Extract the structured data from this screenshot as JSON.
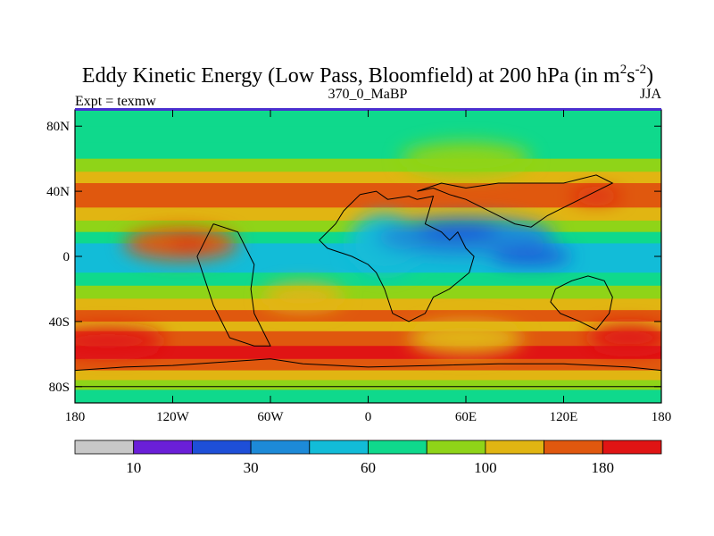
{
  "chart_data": {
    "type": "heatmap",
    "title": "Eddy Kinetic Energy (Low Pass, Bloomfield) at 200 hPa (in m",
    "title_unit_sup1": "2",
    "title_unit_s": "s",
    "title_unit_sup2": "-2",
    "title_close": ")",
    "left_label": "Expt = texmw",
    "center_label": "370_0_MaBP",
    "right_label": "JJA",
    "x_ticks": [
      "180",
      "120W",
      "60W",
      "0",
      "60E",
      "120E",
      "180"
    ],
    "y_ticks": [
      "80N",
      "40N",
      "0",
      "40S",
      "80S"
    ],
    "x_range": [
      -180,
      180
    ],
    "y_range": [
      -90,
      90
    ],
    "colorbar": {
      "colors": [
        "#c8c8c8",
        "#6a1fd8",
        "#1e4fd8",
        "#1d8ad8",
        "#12bcd8",
        "#0fd98c",
        "#8fd418",
        "#e1b512",
        "#e0580e",
        "#e01414"
      ],
      "labels": [
        {
          "boundary": 1,
          "text": "10"
        },
        {
          "boundary": 3,
          "text": "30"
        },
        {
          "boundary": 5,
          "text": "60"
        },
        {
          "boundary": 7,
          "text": "100"
        },
        {
          "boundary": 9,
          "text": "180"
        }
      ]
    },
    "field_bands": [
      {
        "lat": 90,
        "level": 5
      },
      {
        "lat": 80,
        "level": 5
      },
      {
        "lat": 70,
        "level": 5
      },
      {
        "lat": 60,
        "level": 6
      },
      {
        "lat": 52,
        "level": 7
      },
      {
        "lat": 45,
        "level": 8
      },
      {
        "lat": 38,
        "level": 8
      },
      {
        "lat": 30,
        "level": 7
      },
      {
        "lat": 22,
        "level": 6
      },
      {
        "lat": 15,
        "level": 5
      },
      {
        "lat": 8,
        "level": 4
      },
      {
        "lat": 0,
        "level": 4
      },
      {
        "lat": -10,
        "level": 5
      },
      {
        "lat": -18,
        "level": 6
      },
      {
        "lat": -26,
        "level": 7
      },
      {
        "lat": -33,
        "level": 8
      },
      {
        "lat": -40,
        "level": 7
      },
      {
        "lat": -46,
        "level": 8
      },
      {
        "lat": -55,
        "level": 9
      },
      {
        "lat": -63,
        "level": 8
      },
      {
        "lat": -70,
        "level": 7
      },
      {
        "lat": -76,
        "level": 6
      },
      {
        "lat": -82,
        "level": 5
      },
      {
        "lat": -90,
        "level": 5
      }
    ],
    "field_blobs": [
      {
        "name": "atlantic-min",
        "lon": 10,
        "lat": 8,
        "rlon": 22,
        "rlat": 18,
        "level": 4
      },
      {
        "name": "africa-asia-low",
        "lon": 60,
        "lat": 12,
        "rlon": 55,
        "rlat": 12,
        "level": 3
      },
      {
        "name": "tibet-core",
        "lon": 55,
        "lat": 15,
        "rlon": 25,
        "rlat": 5,
        "level": 2
      },
      {
        "name": "asia-core",
        "lon": 100,
        "lat": 0,
        "rlon": 25,
        "rlat": 5,
        "level": 2
      },
      {
        "name": "pacific-warm",
        "lon": -115,
        "lat": 8,
        "rlon": 35,
        "rlat": 10,
        "level": 8
      },
      {
        "name": "pacific-red",
        "lon": -110,
        "lat": 8,
        "rlon": 12,
        "rlat": 3,
        "level": 9
      },
      {
        "name": "atl-yellow",
        "lon": -40,
        "lat": -25,
        "rlon": 25,
        "rlat": 8,
        "level": 7
      },
      {
        "name": "nh-red",
        "lon": 140,
        "lat": 37,
        "rlon": 15,
        "rlat": 3,
        "level": 9
      },
      {
        "name": "nh-green",
        "lon": 60,
        "lat": 60,
        "rlon": 40,
        "rlat": 10,
        "level": 6
      },
      {
        "name": "sh-yellow",
        "lon": 60,
        "lat": -50,
        "rlon": 35,
        "rlat": 10,
        "level": 7
      },
      {
        "name": "sh-red",
        "lon": 160,
        "lat": -50,
        "rlon": 25,
        "rlat": 8,
        "level": 9
      },
      {
        "name": "sh-red-west",
        "lon": -160,
        "lat": -52,
        "rlon": 35,
        "rlat": 8,
        "level": 9
      }
    ],
    "coastlines": [
      [
        [
          -5,
          38
        ],
        [
          5,
          40
        ],
        [
          12,
          35
        ],
        [
          25,
          37
        ],
        [
          30,
          35
        ],
        [
          40,
          37
        ],
        [
          38,
          30
        ],
        [
          35,
          20
        ],
        [
          45,
          15
        ],
        [
          50,
          10
        ],
        [
          55,
          15
        ],
        [
          60,
          5
        ],
        [
          65,
          0
        ],
        [
          62,
          -10
        ],
        [
          50,
          -20
        ],
        [
          40,
          -25
        ],
        [
          35,
          -35
        ],
        [
          25,
          -40
        ],
        [
          15,
          -35
        ],
        [
          10,
          -20
        ],
        [
          5,
          -10
        ],
        [
          0,
          -5
        ],
        [
          -10,
          0
        ],
        [
          -25,
          5
        ],
        [
          -30,
          10
        ],
        [
          -20,
          20
        ],
        [
          -15,
          28
        ],
        [
          -5,
          38
        ]
      ],
      [
        [
          30,
          40
        ],
        [
          40,
          42
        ],
        [
          50,
          38
        ],
        [
          60,
          35
        ],
        [
          70,
          30
        ],
        [
          80,
          25
        ],
        [
          90,
          20
        ],
        [
          100,
          18
        ],
        [
          110,
          25
        ],
        [
          120,
          30
        ],
        [
          130,
          35
        ],
        [
          140,
          40
        ],
        [
          150,
          45
        ],
        [
          140,
          50
        ],
        [
          120,
          45
        ],
        [
          100,
          45
        ],
        [
          80,
          45
        ],
        [
          60,
          42
        ],
        [
          45,
          45
        ],
        [
          30,
          40
        ]
      ],
      [
        [
          -95,
          20
        ],
        [
          -80,
          15
        ],
        [
          -75,
          5
        ],
        [
          -70,
          -5
        ],
        [
          -72,
          -20
        ],
        [
          -70,
          -35
        ],
        [
          -65,
          -45
        ],
        [
          -60,
          -55
        ],
        [
          -70,
          -55
        ],
        [
          -85,
          -50
        ],
        [
          -90,
          -40
        ],
        [
          -95,
          -30
        ],
        [
          -100,
          -15
        ],
        [
          -105,
          0
        ],
        [
          -100,
          10
        ],
        [
          -95,
          20
        ]
      ],
      [
        [
          115,
          -20
        ],
        [
          125,
          -15
        ],
        [
          135,
          -12
        ],
        [
          145,
          -15
        ],
        [
          150,
          -25
        ],
        [
          148,
          -35
        ],
        [
          140,
          -45
        ],
        [
          130,
          -40
        ],
        [
          118,
          -35
        ],
        [
          112,
          -28
        ],
        [
          115,
          -20
        ]
      ],
      [
        [
          -180,
          -70
        ],
        [
          -150,
          -68
        ],
        [
          -120,
          -67
        ],
        [
          -90,
          -65
        ],
        [
          -60,
          -63
        ],
        [
          -40,
          -66
        ],
        [
          0,
          -68
        ],
        [
          40,
          -67
        ],
        [
          80,
          -66
        ],
        [
          120,
          -66
        ],
        [
          160,
          -68
        ],
        [
          180,
          -70
        ],
        [
          180,
          -80
        ],
        [
          -180,
          -80
        ]
      ]
    ]
  }
}
